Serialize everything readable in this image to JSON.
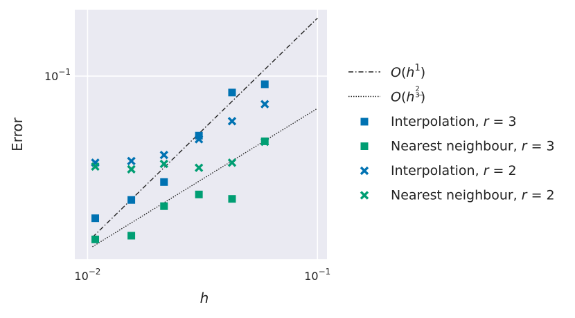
{
  "colors": {
    "blue": "#0072b2",
    "green": "#009e73",
    "plot_background": "#eaeaf2",
    "grid": "#ffffff",
    "line": "#222222"
  },
  "chart_data": {
    "type": "scatter",
    "title": "",
    "xlabel": "h",
    "ylabel": "Error",
    "xscale": "log",
    "yscale": "log",
    "xlim": [
      0.0088,
      0.11
    ],
    "ylim": [
      0.0138,
      0.205
    ],
    "xticks": [
      {
        "value": 0.01,
        "base": "10",
        "exp": "−2"
      },
      {
        "value": 0.1,
        "base": "10",
        "exp": "−1"
      }
    ],
    "yticks": [
      {
        "value": 0.1,
        "base": "10",
        "exp": "−1"
      }
    ],
    "grid": true,
    "legend_position": "right-outside",
    "reference_lines": [
      {
        "label_prefix": "O(h",
        "exponent": "1",
        "style": "dashdot",
        "x": [
          0.0105,
          0.1
        ],
        "y": [
          0.0175,
          0.187
        ]
      },
      {
        "label_prefix": "O(h",
        "exponent": "2/3",
        "style": "dotted",
        "x": [
          0.0105,
          0.1
        ],
        "y": [
          0.0158,
          0.0705
        ]
      }
    ],
    "series": [
      {
        "name": "Interpolation, r = 3",
        "marker": "square",
        "color": "blue",
        "x": [
          0.0108,
          0.0155,
          0.0215,
          0.0305,
          0.0425,
          0.059
        ],
        "y": [
          0.0215,
          0.0262,
          0.0318,
          0.0525,
          0.0837,
          0.0915
        ]
      },
      {
        "name": "Nearest neighbour, r = 3",
        "marker": "square",
        "color": "green",
        "x": [
          0.0108,
          0.0155,
          0.0215,
          0.0305,
          0.0425,
          0.059
        ],
        "y": [
          0.0171,
          0.0178,
          0.0245,
          0.0278,
          0.0265,
          0.0494
        ]
      },
      {
        "name": "Interpolation, r = 2",
        "marker": "x",
        "color": "blue",
        "x": [
          0.0108,
          0.0155,
          0.0215,
          0.0305,
          0.0425,
          0.059
        ],
        "y": [
          0.0392,
          0.0399,
          0.0426,
          0.0505,
          0.0614,
          0.0738
        ]
      },
      {
        "name": "Nearest neighbour, r = 2",
        "marker": "x",
        "color": "green",
        "x": [
          0.0108,
          0.0155,
          0.0215,
          0.0305,
          0.0425,
          0.059
        ],
        "y": [
          0.0376,
          0.0365,
          0.0387,
          0.0371,
          0.0392,
          0.0491
        ]
      }
    ]
  }
}
